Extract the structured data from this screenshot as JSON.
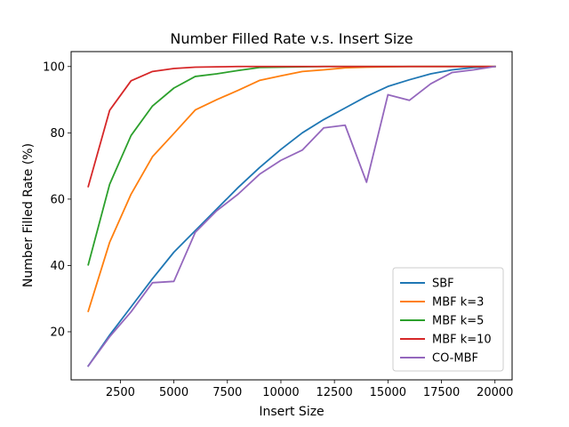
{
  "chart_data": {
    "type": "line",
    "title": "Number Filled Rate v.s. Insert Size",
    "xlabel": "Insert Size",
    "ylabel": "Number Filled Rate (%)",
    "xlim": [
      200,
      20800
    ],
    "ylim": [
      5.5,
      104.5
    ],
    "xticks": [
      2500,
      5000,
      7500,
      10000,
      12500,
      15000,
      17500,
      20000
    ],
    "xtick_labels": [
      "2500",
      "5000",
      "7500",
      "10000",
      "12500",
      "15000",
      "17500",
      "20000"
    ],
    "yticks": [
      20,
      40,
      60,
      80,
      100
    ],
    "ytick_labels": [
      "20",
      "40",
      "60",
      "80",
      "100"
    ],
    "legend_position": "lower-right",
    "x": [
      1000,
      2000,
      3000,
      4000,
      5000,
      6000,
      7000,
      8000,
      9000,
      10000,
      11000,
      12000,
      13000,
      14000,
      15000,
      16000,
      17000,
      18000,
      19000,
      20000
    ],
    "series": [
      {
        "name": "SBF",
        "color": "#1f77b4",
        "values": [
          9.7,
          19,
          27.5,
          36,
          44,
          50.5,
          57,
          63.5,
          69.5,
          75,
          80,
          84,
          87.5,
          91,
          94,
          96,
          97.8,
          99,
          99.7,
          100
        ]
      },
      {
        "name": "MBF k=3",
        "color": "#ff7f0e",
        "values": [
          26.2,
          47,
          61.5,
          72.8,
          79.8,
          86.9,
          90,
          92.8,
          95.8,
          97.2,
          98.5,
          99,
          99.6,
          99.8,
          99.9,
          100,
          100,
          100,
          100,
          100
        ]
      },
      {
        "name": "MBF k=5",
        "color": "#2ca02c",
        "values": [
          40.2,
          64.5,
          79.2,
          88.1,
          93.5,
          97,
          97.8,
          98.8,
          99.7,
          99.8,
          99.9,
          100,
          100,
          100,
          100,
          100,
          100,
          100,
          100,
          100
        ]
      },
      {
        "name": "MBF k=10",
        "color": "#d62728",
        "values": [
          63.8,
          86.8,
          95.7,
          98.5,
          99.4,
          99.8,
          99.9,
          100,
          100,
          100,
          100,
          100,
          100,
          100,
          100,
          100,
          100,
          100,
          100,
          100
        ]
      },
      {
        "name": "CO-MBF",
        "color": "#9467bd",
        "values": [
          9.7,
          18.5,
          26,
          34.8,
          35.2,
          50,
          56.5,
          61.5,
          67.5,
          71.7,
          74.8,
          81.5,
          82.3,
          65.1,
          91.5,
          89.8,
          94.8,
          98.2,
          99,
          100
        ]
      }
    ]
  }
}
